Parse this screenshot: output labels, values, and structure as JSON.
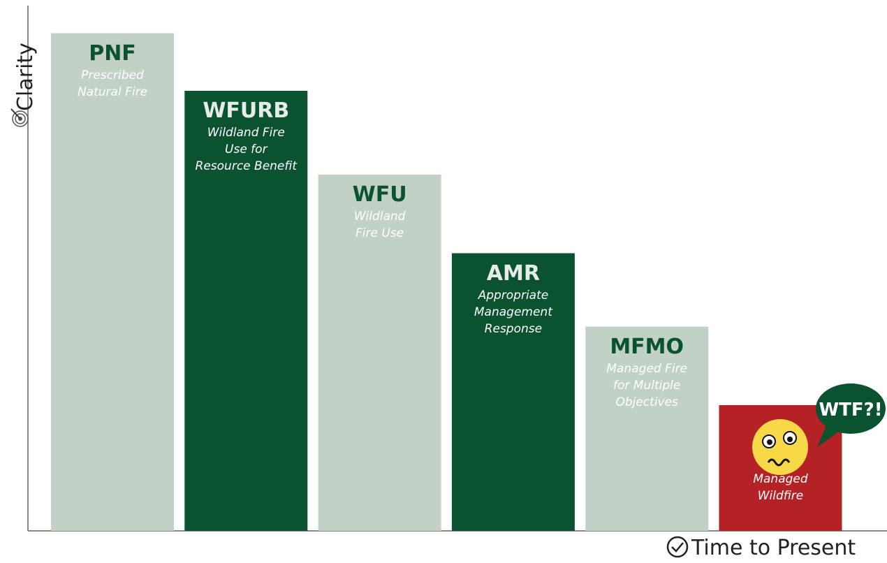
{
  "chart_data": {
    "type": "bar",
    "y_label": "Clarity",
    "x_label": "Time to Present",
    "categories": [
      "PNF",
      "WFURB",
      "WFU",
      "AMR",
      "MFMO",
      null
    ],
    "descriptions": [
      "Prescribed\nNatural Fire",
      "Wildland Fire\nUse for\nResource Benefit",
      "Wildland\nFire Use",
      "Appropriate\nManagement\nResponse",
      "Managed Fire\nfor Multiple\nObjectives",
      "Managed\nWildfire"
    ],
    "values": [
      95,
      84,
      68,
      53,
      39,
      24
    ],
    "colors": [
      "#c2d1c6",
      "#0b5230",
      "#c2d1c6",
      "#0b5230",
      "#c2d1c6",
      "#b52226"
    ],
    "ylim": [
      0,
      100
    ],
    "annotation": "WTF?!"
  }
}
